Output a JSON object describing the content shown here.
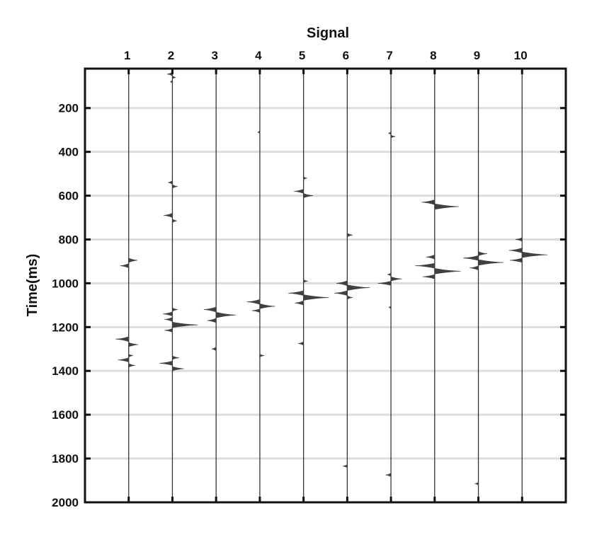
{
  "chart_data": {
    "type": "wiggle",
    "title": "",
    "xlabel": "Signal",
    "ylabel": "Time(ms)",
    "y_reversed": true,
    "ylim": [
      20,
      2000
    ],
    "xlim": [
      0,
      11
    ],
    "x_ticks": [
      1,
      2,
      3,
      4,
      5,
      6,
      7,
      8,
      9,
      10
    ],
    "x_tick_labels": [
      "1",
      "2",
      "3",
      "4",
      "5",
      "6",
      "7",
      "8",
      "9",
      "10"
    ],
    "x_axis_position": "top",
    "y_ticks": [
      200,
      400,
      600,
      800,
      1000,
      1200,
      1400,
      1600,
      1800,
      2000
    ],
    "y_tick_labels": [
      "200",
      "400",
      "600",
      "800",
      "1000",
      "1200",
      "1400",
      "1600",
      "1800",
      "2000"
    ],
    "grid": "horizontal",
    "colors": {
      "fill": "#404040",
      "trace": "#333333",
      "grid": "#dddddd",
      "frame": "#111111"
    },
    "traces": [
      {
        "trace": 1,
        "events": [
          {
            "time": 895,
            "amp": 0.2,
            "width": 12
          },
          {
            "time": 920,
            "amp": -0.2,
            "width": 12
          },
          {
            "time": 1255,
            "amp": -0.3,
            "width": 14
          },
          {
            "time": 1280,
            "amp": 0.22,
            "width": 12
          },
          {
            "time": 1330,
            "amp": 0.1,
            "width": 8
          },
          {
            "time": 1350,
            "amp": -0.25,
            "width": 12
          },
          {
            "time": 1375,
            "amp": 0.15,
            "width": 10
          }
        ]
      },
      {
        "trace": 2,
        "events": [
          {
            "time": 45,
            "amp": -0.12,
            "width": 10
          },
          {
            "time": 60,
            "amp": 0.08,
            "width": 8
          },
          {
            "time": 80,
            "amp": -0.05,
            "width": 8
          },
          {
            "time": 540,
            "amp": -0.1,
            "width": 10
          },
          {
            "time": 558,
            "amp": 0.12,
            "width": 10
          },
          {
            "time": 690,
            "amp": -0.2,
            "width": 12
          },
          {
            "time": 715,
            "amp": 0.1,
            "width": 10
          },
          {
            "time": 1120,
            "amp": 0.12,
            "width": 10
          },
          {
            "time": 1140,
            "amp": -0.22,
            "width": 12
          },
          {
            "time": 1165,
            "amp": -0.18,
            "width": 12
          },
          {
            "time": 1190,
            "amp": 0.58,
            "width": 16
          },
          {
            "time": 1215,
            "amp": -0.18,
            "width": 10
          },
          {
            "time": 1340,
            "amp": 0.15,
            "width": 10
          },
          {
            "time": 1365,
            "amp": -0.3,
            "width": 12
          },
          {
            "time": 1390,
            "amp": 0.26,
            "width": 12
          }
        ]
      },
      {
        "trace": 3,
        "events": [
          {
            "time": 1120,
            "amp": -0.28,
            "width": 14
          },
          {
            "time": 1145,
            "amp": 0.45,
            "width": 16
          },
          {
            "time": 1170,
            "amp": -0.2,
            "width": 12
          },
          {
            "time": 1300,
            "amp": -0.1,
            "width": 10
          }
        ]
      },
      {
        "trace": 4,
        "events": [
          {
            "time": 310,
            "amp": -0.05,
            "width": 8
          },
          {
            "time": 1085,
            "amp": -0.3,
            "width": 14
          },
          {
            "time": 1105,
            "amp": 0.35,
            "width": 14
          },
          {
            "time": 1125,
            "amp": -0.18,
            "width": 10
          },
          {
            "time": 1330,
            "amp": 0.1,
            "width": 8
          }
        ]
      },
      {
        "trace": 5,
        "events": [
          {
            "time": 520,
            "amp": 0.08,
            "width": 8
          },
          {
            "time": 580,
            "amp": -0.22,
            "width": 12
          },
          {
            "time": 600,
            "amp": 0.22,
            "width": 12
          },
          {
            "time": 990,
            "amp": 0.1,
            "width": 8
          },
          {
            "time": 1045,
            "amp": -0.35,
            "width": 14
          },
          {
            "time": 1065,
            "amp": 0.58,
            "width": 16
          },
          {
            "time": 1090,
            "amp": -0.2,
            "width": 12
          },
          {
            "time": 1275,
            "amp": -0.12,
            "width": 10
          }
        ]
      },
      {
        "trace": 6,
        "events": [
          {
            "time": 780,
            "amp": 0.12,
            "width": 10
          },
          {
            "time": 1000,
            "amp": -0.25,
            "width": 14
          },
          {
            "time": 1020,
            "amp": 0.52,
            "width": 16
          },
          {
            "time": 1045,
            "amp": -0.3,
            "width": 14
          },
          {
            "time": 1065,
            "amp": 0.12,
            "width": 10
          },
          {
            "time": 1835,
            "amp": -0.1,
            "width": 8
          }
        ]
      },
      {
        "trace": 7,
        "events": [
          {
            "time": 315,
            "amp": -0.06,
            "width": 8
          },
          {
            "time": 330,
            "amp": 0.1,
            "width": 8
          },
          {
            "time": 960,
            "amp": -0.08,
            "width": 8
          },
          {
            "time": 980,
            "amp": 0.25,
            "width": 12
          },
          {
            "time": 1000,
            "amp": -0.3,
            "width": 12
          },
          {
            "time": 1110,
            "amp": -0.05,
            "width": 8
          },
          {
            "time": 1875,
            "amp": -0.12,
            "width": 10
          }
        ]
      },
      {
        "trace": 8,
        "events": [
          {
            "time": 630,
            "amp": -0.3,
            "width": 14
          },
          {
            "time": 650,
            "amp": 0.55,
            "width": 16
          },
          {
            "time": 880,
            "amp": -0.2,
            "width": 12
          },
          {
            "time": 920,
            "amp": -0.45,
            "width": 14
          },
          {
            "time": 945,
            "amp": 0.6,
            "width": 16
          },
          {
            "time": 970,
            "amp": -0.28,
            "width": 12
          }
        ]
      },
      {
        "trace": 9,
        "events": [
          {
            "time": 865,
            "amp": 0.2,
            "width": 12
          },
          {
            "time": 885,
            "amp": -0.35,
            "width": 14
          },
          {
            "time": 905,
            "amp": 0.58,
            "width": 16
          },
          {
            "time": 930,
            "amp": -0.2,
            "width": 12
          },
          {
            "time": 1915,
            "amp": -0.08,
            "width": 8
          }
        ]
      },
      {
        "trace": 10,
        "events": [
          {
            "time": 800,
            "amp": -0.15,
            "width": 10
          },
          {
            "time": 850,
            "amp": -0.3,
            "width": 14
          },
          {
            "time": 870,
            "amp": 0.58,
            "width": 16
          },
          {
            "time": 895,
            "amp": -0.28,
            "width": 12
          }
        ]
      }
    ]
  }
}
